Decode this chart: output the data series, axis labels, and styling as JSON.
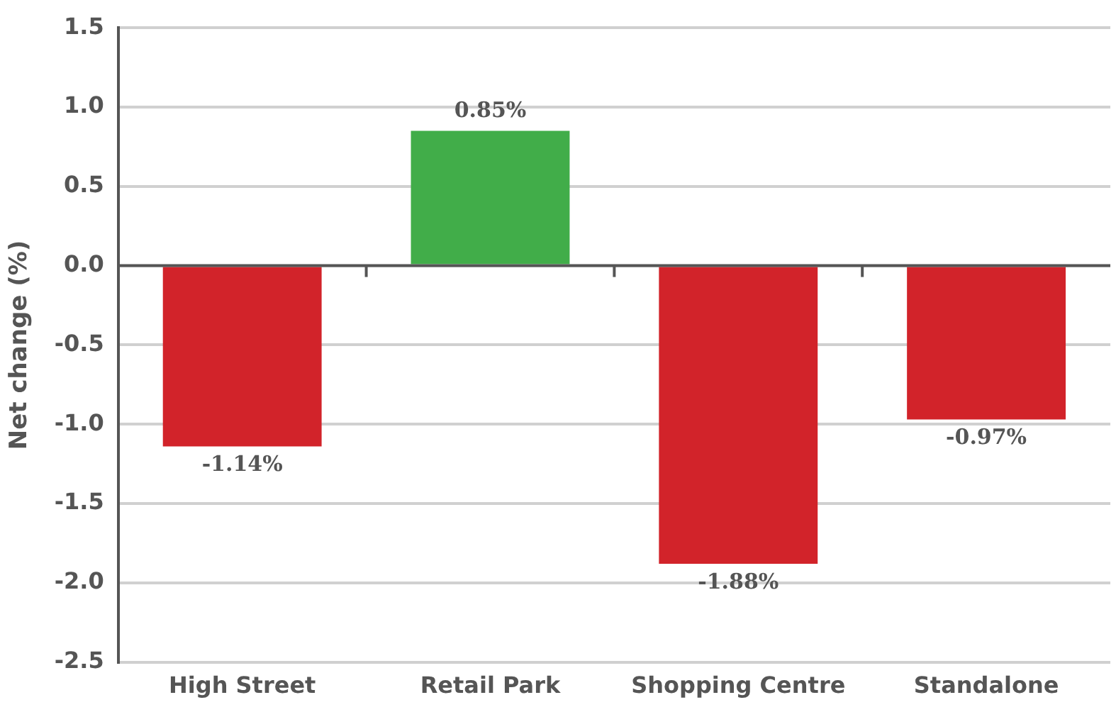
{
  "chart_data": {
    "type": "bar",
    "ylabel": "Net change (%)",
    "categories": [
      "High Street",
      "Retail Park",
      "Shopping Centre",
      "Standalone"
    ],
    "values": [
      -1.14,
      0.85,
      -1.88,
      -0.97
    ],
    "colors": [
      "#d2232a",
      "#41ad49",
      "#d2232a",
      "#d2232a"
    ],
    "value_labels": [
      "-1.14%",
      "0.85%",
      "-1.88%",
      "-0.97%"
    ],
    "ylim": [
      -2.5,
      1.5
    ],
    "yticks": [
      {
        "value": -2.5,
        "label": "-2.5"
      },
      {
        "value": -2,
        "label": "-2.0"
      },
      {
        "value": -1.5,
        "label": "-1.5"
      },
      {
        "value": -1,
        "label": "-1.0"
      },
      {
        "value": -0.5,
        "label": "-0.5"
      },
      {
        "value": 0,
        "label": "0.0"
      },
      {
        "value": 0.5,
        "label": "0.5"
      },
      {
        "value": 1,
        "label": "1.0"
      },
      {
        "value": 1.5,
        "label": "1.5"
      }
    ],
    "grid": "y"
  }
}
